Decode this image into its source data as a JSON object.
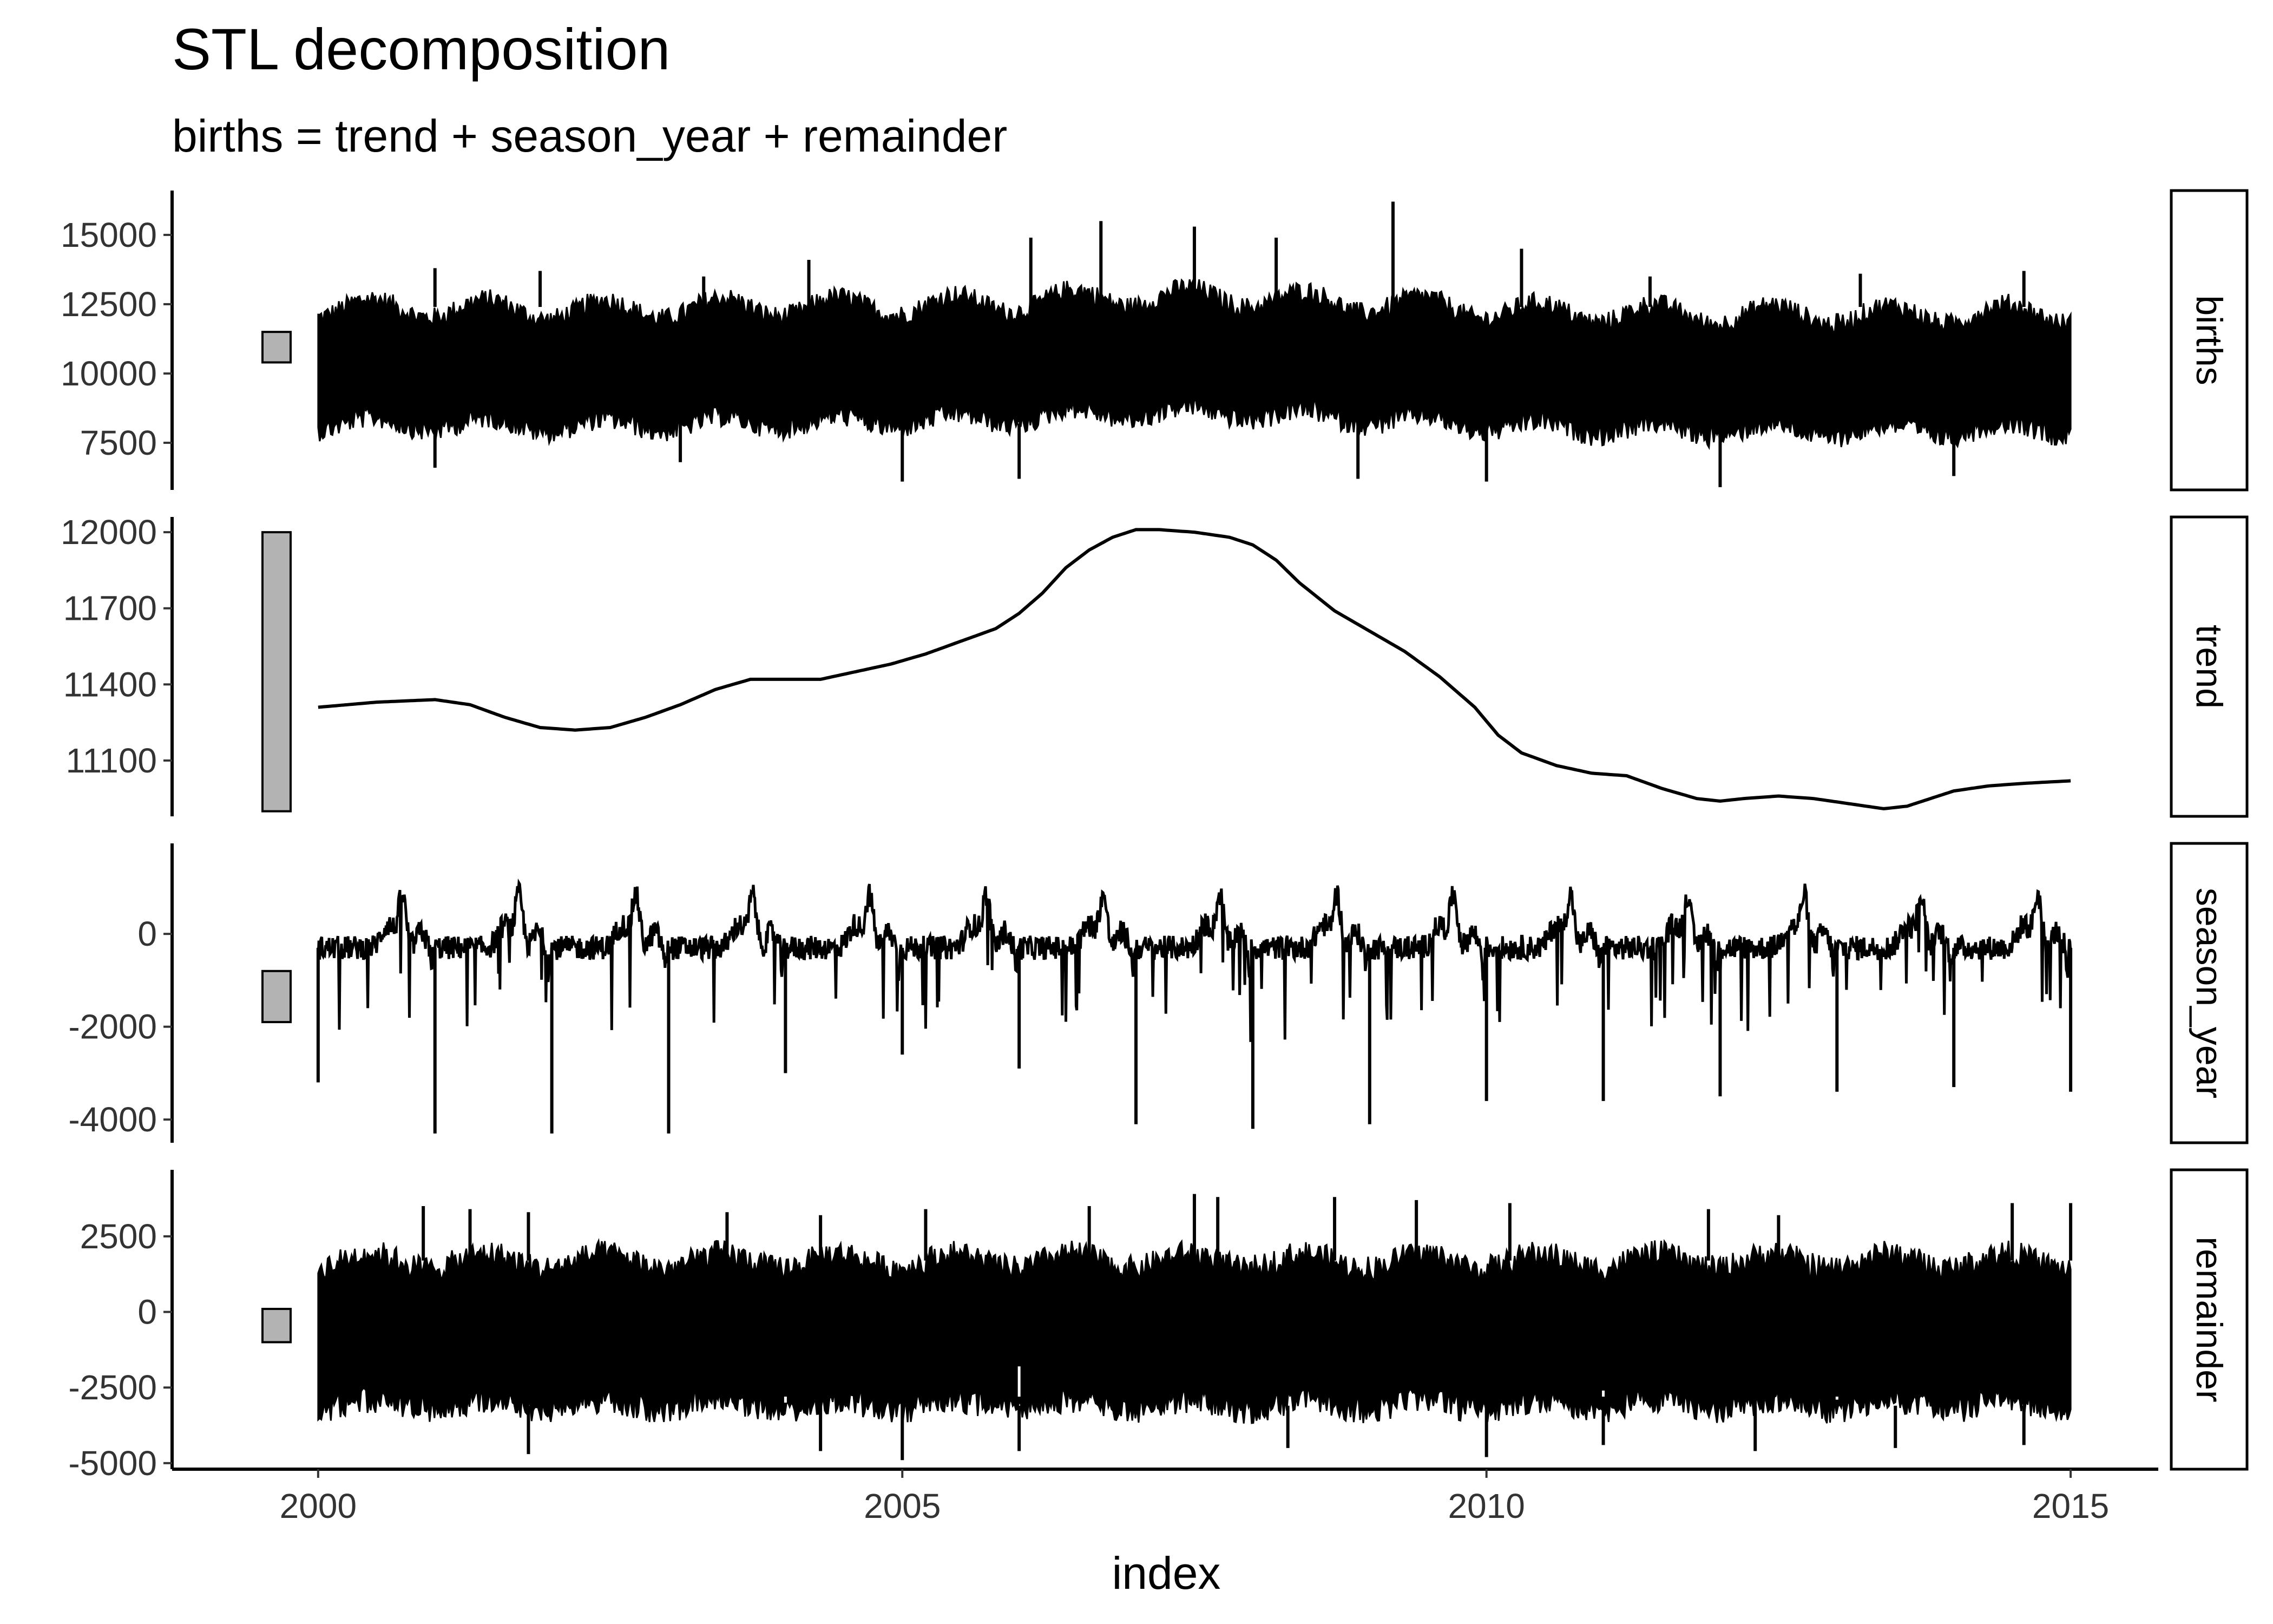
{
  "title": "STL decomposition",
  "subtitle": "births = trend + season_year + remainder",
  "chart_data": {
    "type": "line",
    "title": "STL decomposition",
    "subtitle": "births = trend + season_year + remainder",
    "xlabel": "index",
    "x_ticks": [
      "2000",
      "2005",
      "2010",
      "2015"
    ],
    "xlim": [
      1998.75,
      2015.75
    ],
    "grid": false,
    "panels": [
      {
        "name": "births",
        "ylim": [
          5800,
          16600
        ],
        "y_ticks": [
          7500,
          10000,
          12500,
          15000
        ],
        "y_tick_labels": [
          "7500",
          "10000",
          "12500",
          "15000"
        ],
        "scale_bar": [
          10400,
          11500
        ],
        "mode": "band",
        "band_mid": 10300,
        "band_amp": 2100,
        "band_season_amp": 350,
        "band_trend_ref": "trend",
        "spikes": [
          [
            2001.0,
            13800
          ],
          [
            2001.9,
            13700
          ],
          [
            2003.3,
            13500
          ],
          [
            2004.2,
            14100
          ],
          [
            2006.1,
            14900
          ],
          [
            2006.7,
            15500
          ],
          [
            2007.5,
            15300
          ],
          [
            2008.2,
            14900
          ],
          [
            2009.2,
            16200
          ],
          [
            2010.3,
            14500
          ],
          [
            2011.4,
            13500
          ],
          [
            2013.2,
            13600
          ],
          [
            2014.6,
            13700
          ]
        ],
        "dips": [
          [
            2001.0,
            6600
          ],
          [
            2003.1,
            6800
          ],
          [
            2005.0,
            6100
          ],
          [
            2006.0,
            6200
          ],
          [
            2008.9,
            6200
          ],
          [
            2010.0,
            6100
          ],
          [
            2012.0,
            5900
          ],
          [
            2014.0,
            6300
          ]
        ]
      },
      {
        "name": "trend",
        "ylim": [
          10880,
          12060
        ],
        "y_ticks": [
          11100,
          11400,
          11700,
          12000
        ],
        "y_tick_labels": [
          "11100",
          "11400",
          "11700",
          "12000"
        ],
        "scale_bar": [
          10900,
          12000
        ],
        "mode": "line",
        "x": [
          2000.0,
          2000.5,
          2001.0,
          2001.3,
          2001.6,
          2001.9,
          2002.2,
          2002.5,
          2002.8,
          2003.1,
          2003.4,
          2003.7,
          2004.0,
          2004.3,
          2004.6,
          2004.9,
          2005.2,
          2005.5,
          2005.8,
          2006.0,
          2006.2,
          2006.4,
          2006.6,
          2006.8,
          2007.0,
          2007.2,
          2007.5,
          2007.8,
          2008.0,
          2008.2,
          2008.4,
          2008.7,
          2009.0,
          2009.3,
          2009.6,
          2009.9,
          2010.1,
          2010.3,
          2010.6,
          2010.9,
          2011.2,
          2011.5,
          2011.8,
          2012.0,
          2012.2,
          2012.5,
          2012.8,
          2013.1,
          2013.4,
          2013.6,
          2013.8,
          2014.0,
          2014.3,
          2014.6,
          2015.0
        ],
        "y": [
          11310,
          11330,
          11340,
          11320,
          11270,
          11230,
          11220,
          11230,
          11270,
          11320,
          11380,
          11420,
          11420,
          11420,
          11450,
          11480,
          11520,
          11570,
          11620,
          11680,
          11760,
          11860,
          11930,
          11980,
          12010,
          12010,
          12000,
          11980,
          11950,
          11890,
          11800,
          11690,
          11610,
          11530,
          11430,
          11310,
          11200,
          11130,
          11080,
          11050,
          11040,
          10990,
          10950,
          10940,
          10950,
          10960,
          10950,
          10930,
          10910,
          10920,
          10950,
          10980,
          11000,
          11010,
          11020
        ]
      },
      {
        "name": "season_year",
        "ylim": [
          -4500,
          1950
        ],
        "y_ticks": [
          -4000,
          -2000,
          0
        ],
        "y_tick_labels": [
          "-4000",
          "-2000",
          "0"
        ],
        "scale_bar": [
          -1900,
          -800
        ],
        "mode": "season",
        "spike_years": [
          [
            2000.0,
            -3200
          ],
          [
            2001.0,
            -4300
          ],
          [
            2002.0,
            -4300
          ],
          [
            2003.0,
            -4300
          ],
          [
            2004.0,
            -3000
          ],
          [
            2005.0,
            -2600
          ],
          [
            2006.0,
            -2900
          ],
          [
            2007.0,
            -4100
          ],
          [
            2008.0,
            -4200
          ],
          [
            2009.0,
            -4100
          ],
          [
            2010.0,
            -3600
          ],
          [
            2011.0,
            -3600
          ],
          [
            2012.0,
            -3500
          ],
          [
            2013.0,
            -3400
          ],
          [
            2014.0,
            -3300
          ],
          [
            2015.0,
            -3400
          ]
        ]
      },
      {
        "name": "remainder",
        "ylim": [
          -5200,
          4700
        ],
        "y_ticks": [
          -5000,
          -2500,
          0,
          2500
        ],
        "y_tick_labels": [
          "-5000",
          "-2500",
          "0",
          "2500"
        ],
        "scale_bar": [
          -1000,
          100
        ],
        "mode": "band",
        "band_mid": -700,
        "band_amp": 2400,
        "band_season_amp": 250,
        "spikes": [
          [
            2000.9,
            3500
          ],
          [
            2001.3,
            3400
          ],
          [
            2001.8,
            3300
          ],
          [
            2003.5,
            3300
          ],
          [
            2004.3,
            3200
          ],
          [
            2005.2,
            3400
          ],
          [
            2006.6,
            3500
          ],
          [
            2007.5,
            3900
          ],
          [
            2007.7,
            3800
          ],
          [
            2008.7,
            3800
          ],
          [
            2009.4,
            3700
          ],
          [
            2010.2,
            3600
          ],
          [
            2011.9,
            3400
          ],
          [
            2012.5,
            3200
          ],
          [
            2014.5,
            3600
          ],
          [
            2015.0,
            3600
          ]
        ],
        "dips": [
          [
            2001.8,
            -4700
          ],
          [
            2004.3,
            -4600
          ],
          [
            2005.0,
            -4900
          ],
          [
            2006.0,
            -4600
          ],
          [
            2008.3,
            -4500
          ],
          [
            2010.0,
            -4800
          ],
          [
            2011.0,
            -4400
          ],
          [
            2012.3,
            -4600
          ],
          [
            2013.5,
            -4500
          ],
          [
            2014.6,
            -4400
          ]
        ],
        "notch": [
          [
            2006.0,
            -1800
          ],
          [
            2011.0,
            -2600
          ],
          [
            2013.0,
            -2900
          ],
          [
            2004.0,
            -3000
          ]
        ]
      }
    ]
  }
}
